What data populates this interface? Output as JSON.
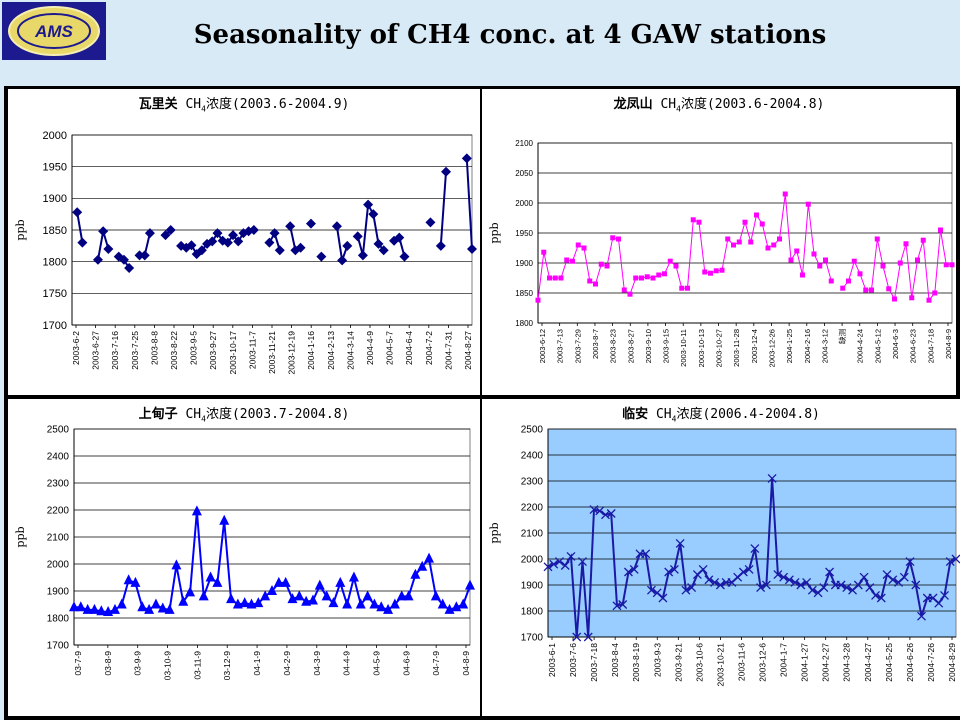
{
  "header": {
    "title": "Seasonality of CH4 conc. at 4 GAW stations",
    "logo": "AMS",
    "logo_colors": {
      "background": "#1c1a8e",
      "oval": "#e8d86a",
      "text": "#1c1a8e"
    }
  },
  "chart_data": [
    {
      "type": "line",
      "station": "瓦里关",
      "species_pre": "CH",
      "species_sub": "4",
      "species_post": "浓度(2003.6-2004.9)",
      "ylabel": "ppb",
      "xlabel": "",
      "ylim": [
        1700,
        2000
      ],
      "yticks": [
        1700,
        1750,
        1800,
        1850,
        1900,
        1950,
        2000
      ],
      "grid": true,
      "plot_background": "#ffffff",
      "color": "#000080",
      "marker": "diamond",
      "x_ticklabels": [
        "2003-6-2",
        "2003-6-27",
        "2003-7-16",
        "2003-7-25",
        "2003-8-8",
        "2003-8-22",
        "2003-9-5",
        "2003-9-27",
        "2003-10-17",
        "2003-11-7",
        "2003-11-21",
        "2003-12-19",
        "2004-1-16",
        "2004-2-13",
        "2004-3-14",
        "2004-4-9",
        "2004-5-7",
        "2004-6-4",
        "2004-7-2",
        "2004-7-31",
        "2004-8-27"
      ],
      "values": [
        null,
        1878,
        1830,
        null,
        null,
        1803,
        1848,
        1820,
        null,
        1808,
        1803,
        1790,
        null,
        1810,
        1810,
        1845,
        null,
        null,
        1842,
        1850,
        null,
        1825,
        1822,
        1826,
        1812,
        1818,
        1828,
        1832,
        1845,
        1833,
        1830,
        1842,
        1832,
        1845,
        1848,
        1850,
        null,
        null,
        1830,
        1845,
        1818,
        null,
        1856,
        1818,
        1822,
        null,
        1860,
        null,
        1808,
        null,
        null,
        1856,
        1802,
        1825,
        null,
        1840,
        1810,
        1890,
        1875,
        1828,
        1818,
        null,
        1833,
        1838,
        1808,
        null,
        null,
        null,
        null,
        1862,
        null,
        1825,
        1942,
        null,
        null,
        null,
        1963,
        1820
      ],
      "gaps": "null = no measurement (line broken)"
    },
    {
      "type": "line",
      "station": "龙凤山",
      "species_pre": "CH",
      "species_sub": "4",
      "species_post": "浓度(2003.6-2004.8)",
      "ylabel": "ppb",
      "xlabel": "",
      "ylim": [
        1800,
        2100
      ],
      "yticks": [
        1800,
        1850,
        1900,
        1950,
        2000,
        2050,
        2100
      ],
      "grid": true,
      "plot_background": "#ffffff",
      "color": "#ff00ff",
      "marker": "square",
      "x_ticklabels": [
        "2003-6-12",
        "2003-7-13",
        "2003-7-29",
        "2003-8-7",
        "2003-8-23",
        "2003-8-27",
        "2003-9-10",
        "2003-9-15",
        "2003-10-11",
        "2003-10-13",
        "2003-10-27",
        "2003-11-28",
        "2003-12-4",
        "2003-12-26",
        "2004-1-25",
        "2004-2-16",
        "2004-3-12",
        "缺测",
        "2004-4-24",
        "2004-5-12",
        "2004-6-3",
        "2004-6-23",
        "2004-7-18",
        "2004-8-9"
      ],
      "values": [
        1838,
        1918,
        1875,
        1875,
        1875,
        1905,
        1903,
        1930,
        1925,
        1870,
        1865,
        1898,
        1895,
        1942,
        1940,
        1855,
        1848,
        1875,
        1875,
        1877,
        1875,
        1880,
        1882,
        1903,
        1895,
        1858,
        1858,
        1972,
        1968,
        1885,
        1883,
        1887,
        1888,
        1940,
        1930,
        1935,
        1968,
        1935,
        1980,
        1965,
        1925,
        1930,
        1940,
        2015,
        1905,
        1920,
        1880,
        1998,
        1915,
        1895,
        1905,
        1870,
        null,
        1858,
        1870,
        1903,
        1882,
        1855,
        1855,
        1940,
        1895,
        1857,
        1840,
        1900,
        1932,
        1842,
        1905,
        1938,
        1838,
        1850,
        1955,
        1897,
        1897
      ]
    },
    {
      "type": "line",
      "station": "上甸子",
      "species_pre": "CH",
      "species_sub": "4",
      "species_post": "浓度(2003.7-2004.8)",
      "ylabel": "ppb",
      "xlabel": "",
      "ylim": [
        1700,
        2500
      ],
      "yticks": [
        1700,
        1800,
        1900,
        2000,
        2100,
        2200,
        2300,
        2400,
        2500
      ],
      "grid": true,
      "plot_background": "#ffffff",
      "color": "#0000ff",
      "marker": "triangle",
      "x_ticklabels": [
        "03-7-9",
        "03-8-9",
        "03-9-9",
        "03-10-9",
        "03-11-9",
        "03-12-9",
        "04-1-9",
        "04-2-9",
        "04-3-9",
        "04-4-9",
        "04-5-9",
        "04-6-9",
        "04-7-9",
        "04-8-9"
      ],
      "values": [
        1840,
        1840,
        1830,
        1830,
        1825,
        1822,
        1830,
        1850,
        1940,
        1930,
        1840,
        1830,
        1850,
        1835,
        1830,
        1995,
        1860,
        1895,
        2195,
        1880,
        1950,
        1930,
        2160,
        1870,
        1850,
        1855,
        1850,
        1855,
        1880,
        1900,
        1930,
        1930,
        1870,
        1880,
        1860,
        1865,
        1920,
        1880,
        1855,
        1930,
        1850,
        1950,
        1850,
        1880,
        1850,
        1840,
        1830,
        1850,
        1880,
        1880,
        1960,
        1990,
        2020,
        1880,
        1850,
        1830,
        1840,
        1850,
        1920
      ]
    },
    {
      "type": "line",
      "station": "临安",
      "species_pre": "CH",
      "species_sub": "4",
      "species_post": "浓度(2006.4-2004.8)",
      "ylabel": "ppb",
      "xlabel": "",
      "ylim": [
        1700,
        2500
      ],
      "yticks": [
        1700,
        1800,
        1900,
        2000,
        2100,
        2200,
        2300,
        2400,
        2500
      ],
      "grid": true,
      "plot_background": "#99ccff",
      "color": "#1a1aa6",
      "marker": "x",
      "x_ticklabels": [
        "2003-6-1",
        "2003-7-6",
        "2003-7-18",
        "2003-8-4",
        "2003-8-19",
        "2003-9-3",
        "2003-9-21",
        "2003-10-6",
        "2003-10-21",
        "2003-11-6",
        "2003-12-6",
        "2004-1-7",
        "2004-1-27",
        "2004-2-27",
        "2004-3-28",
        "2004-4-27",
        "2004-5-25",
        "2004-6-26",
        "2004-7-26",
        "2004-8-29"
      ],
      "values": [
        1970,
        1980,
        1990,
        1975,
        2010,
        1700,
        1990,
        1700,
        2190,
        2185,
        2170,
        2175,
        1820,
        1825,
        1950,
        1960,
        2020,
        2020,
        1880,
        1870,
        1850,
        1950,
        1960,
        2060,
        1880,
        1890,
        1940,
        1960,
        1920,
        1910,
        1900,
        1910,
        1910,
        1930,
        1950,
        1960,
        2040,
        1890,
        1900,
        2310,
        1940,
        1930,
        1920,
        1910,
        1900,
        1910,
        1880,
        1870,
        1890,
        1950,
        1900,
        1900,
        1890,
        1880,
        1900,
        1930,
        1890,
        1860,
        1850,
        1940,
        1920,
        1910,
        1930,
        1990,
        1900,
        1780,
        1850,
        1850,
        1830,
        1860,
        1990,
        2000
      ]
    }
  ]
}
